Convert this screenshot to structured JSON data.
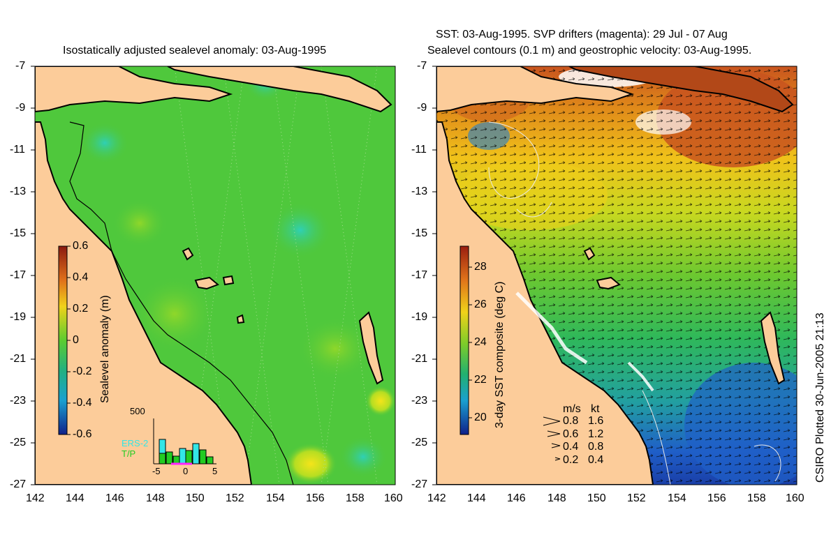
{
  "left_panel": {
    "title": "Isostatically adjusted sealevel anomaly: 03-Aug-1995",
    "colorbar": {
      "label": "Sealevel anomaly (m)",
      "ticks": [
        "0.6",
        "0.4",
        "0.2",
        "0",
        "-0.2",
        "-0.4",
        "-0.6"
      ]
    },
    "inset": {
      "top_label": "500",
      "legend": [
        "ERS-2",
        "T/P"
      ],
      "legend_colors": [
        "#33e6e6",
        "#22cc22"
      ],
      "x_ticks": [
        "-5",
        "0",
        "5"
      ]
    }
  },
  "right_panel": {
    "title_line1": "SST: 03-Aug-1995. SVP drifters (magenta): 29 Jul - 07 Aug",
    "title_line2": "Sealevel contours (0.1 m) and geostrophic velocity: 03-Aug-1995.",
    "colorbar": {
      "label": "3-day SST composite (deg C)",
      "ticks": [
        "28",
        "26",
        "24",
        "22",
        "20"
      ]
    },
    "velocity_legend": {
      "header": [
        "m/s",
        "kt"
      ],
      "rows": [
        [
          "0.8",
          "1.6"
        ],
        [
          "0.6",
          "1.2"
        ],
        [
          "0.4",
          "0.8"
        ],
        [
          "0.2",
          "0.4"
        ]
      ]
    }
  },
  "axes": {
    "y_ticks": [
      "-7",
      "-9",
      "-11",
      "-13",
      "-15",
      "-17",
      "-19",
      "-21",
      "-23",
      "-25",
      "-27"
    ],
    "x_ticks": [
      "142",
      "144",
      "146",
      "148",
      "150",
      "152",
      "154",
      "156",
      "158",
      "160"
    ]
  },
  "credit": "CSIRO Plotted 30-Jun-2005 21:13",
  "colors": {
    "land": "#fccc9a",
    "ocean_green": "#4fc83c",
    "sst_warm": "#d2691e",
    "sst_cool": "#1a3fa8",
    "coast": "#000000"
  }
}
